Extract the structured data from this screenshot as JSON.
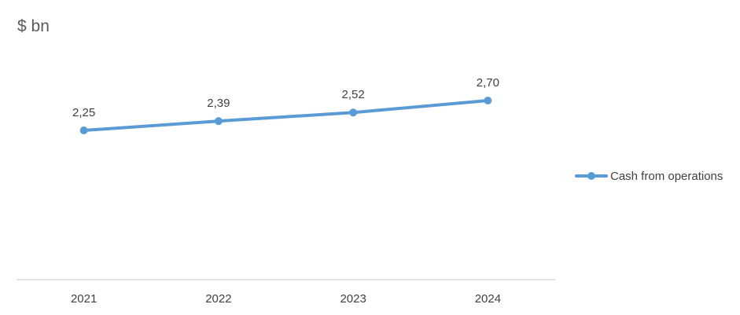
{
  "chart_data": {
    "type": "line",
    "unit_label": "$ bn",
    "categories": [
      "2021",
      "2022",
      "2023",
      "2024"
    ],
    "series": [
      {
        "name": "Cash from operations",
        "values": [
          2.25,
          2.39,
          2.52,
          2.7
        ],
        "data_labels": [
          "2,25",
          "2,39",
          "2,52",
          "2,70"
        ],
        "color": "#5B9BD5"
      }
    ],
    "ylim": [
      0,
      4.3
    ],
    "grid": false,
    "legend_position": "right"
  }
}
